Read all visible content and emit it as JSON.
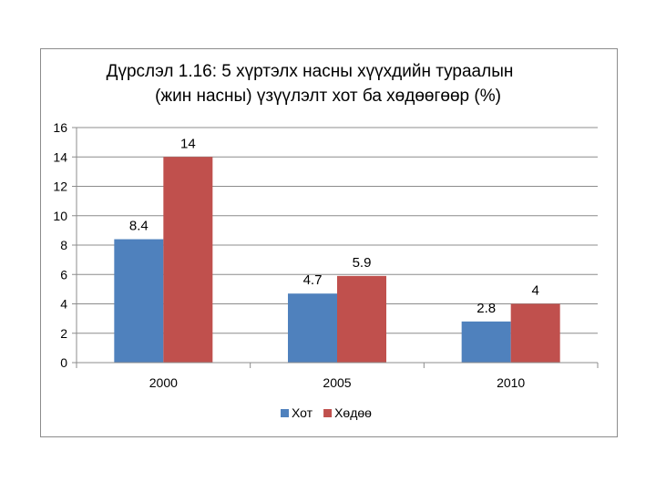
{
  "chart_data": {
    "type": "bar",
    "title": "Дүрслэл 1.16: 5 хүртэлх насны хүүхдийн тураалын",
    "subtitle": "(жин насны) үзүүлэлт хот ба хөдөөгөөр (%)",
    "categories": [
      "2000",
      "2005",
      "2010"
    ],
    "series": [
      {
        "name": "Хот",
        "values": [
          8.4,
          4.7,
          2.8
        ],
        "labels": [
          "8.4",
          "4.7",
          "2.8"
        ],
        "color": "#4f81bd"
      },
      {
        "name": "Хөдөө",
        "values": [
          14,
          5.9,
          4
        ],
        "labels": [
          "14",
          "5.9",
          "4"
        ],
        "color": "#c0504d"
      }
    ],
    "ylim": [
      0,
      16
    ],
    "yticks": [
      0,
      2,
      4,
      6,
      8,
      10,
      12,
      14,
      16
    ],
    "xlabel": "",
    "ylabel": "",
    "grid": true,
    "legend_position": "bottom"
  }
}
